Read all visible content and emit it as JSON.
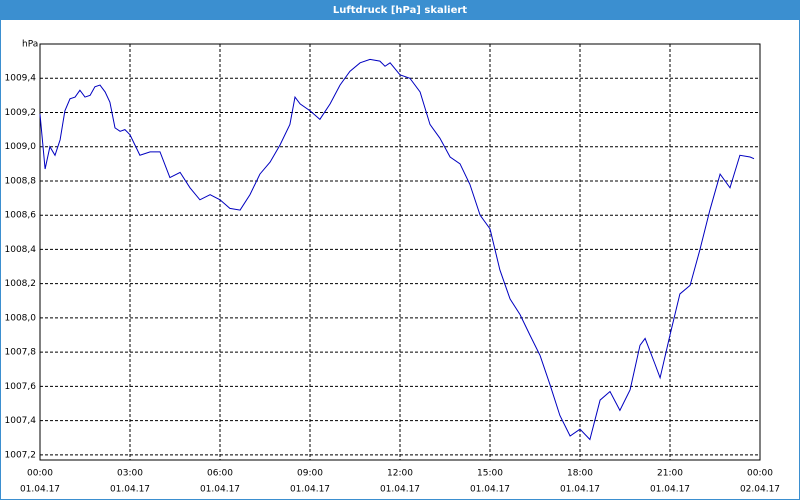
{
  "chart_data": {
    "type": "line",
    "title": "Luftdruck [hPa] skaliert",
    "ylabel": "hPa",
    "x": [
      0,
      0.17,
      0.33,
      0.5,
      0.67,
      0.83,
      1.0,
      1.17,
      1.33,
      1.5,
      1.67,
      1.83,
      2.0,
      2.17,
      2.33,
      2.5,
      2.67,
      2.83,
      3.0,
      3.33,
      3.67,
      4.0,
      4.33,
      4.67,
      5.0,
      5.33,
      5.67,
      6.0,
      6.33,
      6.67,
      7.0,
      7.33,
      7.67,
      8.0,
      8.33,
      8.5,
      8.67,
      9.0,
      9.33,
      9.67,
      10.0,
      10.33,
      10.67,
      11.0,
      11.33,
      11.5,
      11.67,
      12.0,
      12.33,
      12.67,
      13.0,
      13.33,
      13.67,
      14.0,
      14.33,
      14.67,
      15.0,
      15.33,
      15.67,
      16.0,
      16.33,
      16.67,
      17.0,
      17.33,
      17.67,
      18.0,
      18.33,
      18.67,
      19.0,
      19.33,
      19.67,
      20.0,
      20.17,
      20.5,
      20.67,
      21.0,
      21.33,
      21.67,
      22.0,
      22.33,
      22.67,
      23.0,
      23.33,
      23.67,
      23.8
    ],
    "series": [
      {
        "name": "Luftdruck",
        "color": "#0000c0",
        "values": [
          1009.19,
          1008.87,
          1009.0,
          1008.95,
          1009.04,
          1009.21,
          1009.28,
          1009.29,
          1009.33,
          1009.29,
          1009.3,
          1009.35,
          1009.36,
          1009.32,
          1009.26,
          1009.11,
          1009.09,
          1009.1,
          1009.07,
          1008.95,
          1008.97,
          1008.97,
          1008.82,
          1008.85,
          1008.76,
          1008.69,
          1008.72,
          1008.69,
          1008.64,
          1008.63,
          1008.72,
          1008.84,
          1008.91,
          1009.01,
          1009.13,
          1009.29,
          1009.25,
          1009.21,
          1009.16,
          1009.25,
          1009.36,
          1009.44,
          1009.49,
          1009.51,
          1009.5,
          1009.47,
          1009.49,
          1009.42,
          1009.4,
          1009.32,
          1009.13,
          1009.05,
          1008.94,
          1008.9,
          1008.78,
          1008.6,
          1008.52,
          1008.28,
          1008.11,
          1008.02,
          1007.9,
          1007.78,
          1007.61,
          1007.43,
          1007.31,
          1007.35,
          1007.29,
          1007.52,
          1007.57,
          1007.46,
          1007.58,
          1007.84,
          1007.88,
          1007.73,
          1007.65,
          1007.9,
          1008.14,
          1008.19,
          1008.4,
          1008.63,
          1008.84,
          1008.76,
          1008.95,
          1008.94,
          1008.93
        ]
      }
    ],
    "xlim": [
      0,
      24
    ],
    "xticks": [
      {
        "value": 0,
        "label": "00:00"
      },
      {
        "value": 3,
        "label": "03:00"
      },
      {
        "value": 6,
        "label": "06:00"
      },
      {
        "value": 9,
        "label": "09:00"
      },
      {
        "value": 12,
        "label": "12:00"
      },
      {
        "value": 15,
        "label": "15:00"
      },
      {
        "value": 18,
        "label": "18:00"
      },
      {
        "value": 21,
        "label": "21:00"
      },
      {
        "value": 24,
        "label": "00:00"
      }
    ],
    "xtick_dates": [
      "01.04.17",
      "01.04.17",
      "01.04.17",
      "01.04.17",
      "01.04.17",
      "01.04.17",
      "01.04.17",
      "01.04.17",
      "02.04.17"
    ],
    "ylim": [
      1007.17,
      1009.6
    ],
    "yticks": [
      {
        "value": 1007.2,
        "label": "1007,2"
      },
      {
        "value": 1007.4,
        "label": "1007,4"
      },
      {
        "value": 1007.6,
        "label": "1007,6"
      },
      {
        "value": 1007.8,
        "label": "1007,8"
      },
      {
        "value": 1008.0,
        "label": "1008,0"
      },
      {
        "value": 1008.2,
        "label": "1008,2"
      },
      {
        "value": 1008.4,
        "label": "1008,4"
      },
      {
        "value": 1008.6,
        "label": "1008,6"
      },
      {
        "value": 1008.8,
        "label": "1008,8"
      },
      {
        "value": 1009.0,
        "label": "1009,0"
      },
      {
        "value": 1009.2,
        "label": "1009,2"
      },
      {
        "value": 1009.4,
        "label": "1009,4"
      }
    ],
    "grid": true
  }
}
